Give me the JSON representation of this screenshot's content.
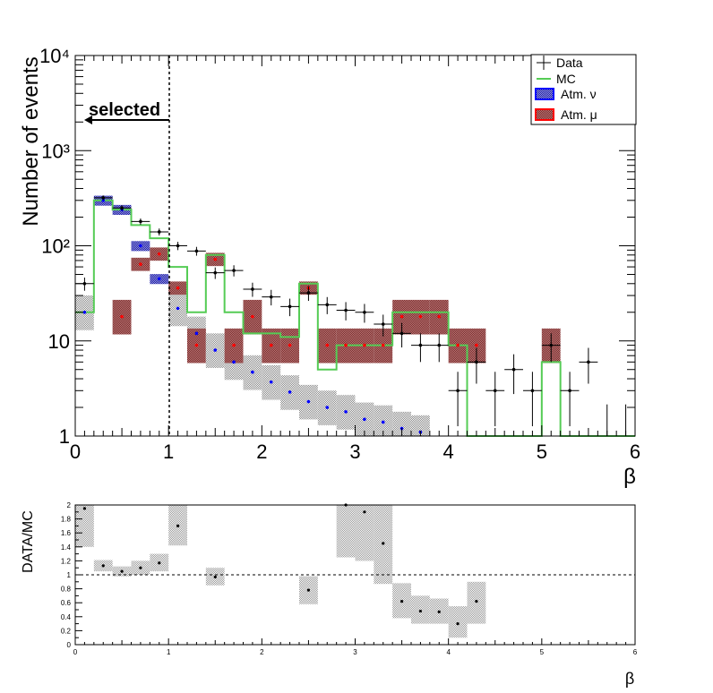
{
  "colors": {
    "data": "#000000",
    "mc": "#55cc55",
    "atm_nu_fill": "#2222cc",
    "atm_nu_border": "#0000ff",
    "atm_mu_fill": "#993333",
    "atm_mu_border": "#ff0000",
    "band": "#999999",
    "ratio_band": "#bbbbbb"
  },
  "chart_data": [
    {
      "type": "histogram",
      "ylabel": "Number of events",
      "xlabel": "β",
      "xlim": [
        0,
        6
      ],
      "ylim": [
        1,
        10000
      ],
      "yscale": "log",
      "xticks": [
        "0",
        "1",
        "2",
        "3",
        "4",
        "5",
        "6"
      ],
      "yticks": [
        "1",
        "10",
        "10²",
        "10³",
        "10⁴"
      ],
      "legend": {
        "position": "top-right",
        "entries": [
          {
            "label": "Data",
            "kind": "data"
          },
          {
            "label": "MC",
            "kind": "mc"
          },
          {
            "label": "Atm. ν",
            "kind": "atm_nu"
          },
          {
            "label": "Atm. μ",
            "kind": "atm_mu"
          }
        ]
      },
      "cut": {
        "x": 1,
        "label": "selected",
        "direction": "left"
      },
      "bin_width": 0.2,
      "bin_centers": [
        0.1,
        0.3,
        0.5,
        0.7,
        0.9,
        1.1,
        1.3,
        1.5,
        1.7,
        1.9,
        2.1,
        2.3,
        2.5,
        2.7,
        2.9,
        3.1,
        3.3,
        3.5,
        3.7,
        3.9,
        4.1,
        4.3,
        4.5,
        4.7,
        4.9,
        5.1,
        5.3,
        5.5,
        5.7,
        5.9
      ],
      "data": [
        40,
        320,
        250,
        180,
        140,
        100,
        88,
        52,
        55,
        35,
        29,
        23,
        32,
        24,
        21,
        20,
        15,
        12,
        9,
        9,
        3,
        6,
        3,
        5,
        3,
        9,
        3,
        6,
        1,
        1
      ],
      "mc": [
        20,
        300,
        240,
        165,
        120,
        60,
        20,
        80,
        20,
        12,
        12,
        11,
        40,
        5,
        9,
        9,
        9,
        20,
        20,
        20,
        9,
        1,
        1,
        1,
        1,
        6,
        1,
        1,
        1,
        1
      ],
      "atm_nu": [
        20,
        300,
        240,
        100,
        45,
        22,
        12,
        8,
        6,
        4.7,
        3.7,
        2.9,
        2.3,
        2,
        1.8,
        1.5,
        1.4,
        1.2,
        1.1,
        null,
        null,
        null,
        null,
        null,
        null,
        null,
        null,
        null,
        null,
        null
      ],
      "atm_mu": [
        null,
        null,
        18,
        64,
        82,
        36,
        9,
        72,
        9,
        18,
        9,
        9,
        36,
        9,
        9,
        9,
        9,
        18,
        18,
        18,
        9,
        9,
        null,
        null,
        null,
        9,
        null,
        null,
        null,
        null
      ]
    },
    {
      "type": "ratio",
      "ylabel": "DATA/MC",
      "xlabel": "β",
      "xlim": [
        0,
        6
      ],
      "ylim": [
        0,
        2
      ],
      "reference_line": 1,
      "xticks": [
        "0",
        "1",
        "2",
        "3",
        "4",
        "5",
        "6"
      ],
      "yticks": [
        "0",
        "0.2",
        "0.4",
        "0.6",
        "0.8",
        "1",
        "1.2",
        "1.4",
        "1.6",
        "1.8",
        "2"
      ],
      "points": [
        {
          "x": 0.1,
          "y": 1.95,
          "band": [
            1.4,
            2.0
          ]
        },
        {
          "x": 0.3,
          "y": 1.13,
          "band": [
            1.05,
            1.21
          ]
        },
        {
          "x": 0.5,
          "y": 1.05,
          "band": [
            0.98,
            1.12
          ]
        },
        {
          "x": 0.7,
          "y": 1.1,
          "band": [
            1.0,
            1.2
          ]
        },
        {
          "x": 0.9,
          "y": 1.17,
          "band": [
            1.05,
            1.3
          ]
        },
        {
          "x": 1.1,
          "y": 1.7,
          "band": [
            1.42,
            2.0
          ]
        },
        {
          "x": 1.5,
          "y": 0.97,
          "band": [
            0.85,
            1.1
          ]
        },
        {
          "x": 2.5,
          "y": 0.78,
          "band": [
            0.58,
            0.98
          ]
        },
        {
          "x": 2.9,
          "y": 2.0,
          "band": [
            1.25,
            2.0
          ]
        },
        {
          "x": 3.1,
          "y": 1.9,
          "band": [
            1.2,
            2.0
          ]
        },
        {
          "x": 3.3,
          "y": 1.45,
          "band": [
            0.87,
            2.0
          ]
        },
        {
          "x": 3.5,
          "y": 0.62,
          "band": [
            0.38,
            0.88
          ]
        },
        {
          "x": 3.7,
          "y": 0.48,
          "band": [
            0.3,
            0.7
          ]
        },
        {
          "x": 3.9,
          "y": 0.47,
          "band": [
            0.3,
            0.66
          ]
        },
        {
          "x": 4.1,
          "y": 0.3,
          "band": [
            0.1,
            0.55
          ]
        },
        {
          "x": 4.3,
          "y": 0.62,
          "band": [
            0.3,
            0.9
          ]
        }
      ]
    }
  ]
}
